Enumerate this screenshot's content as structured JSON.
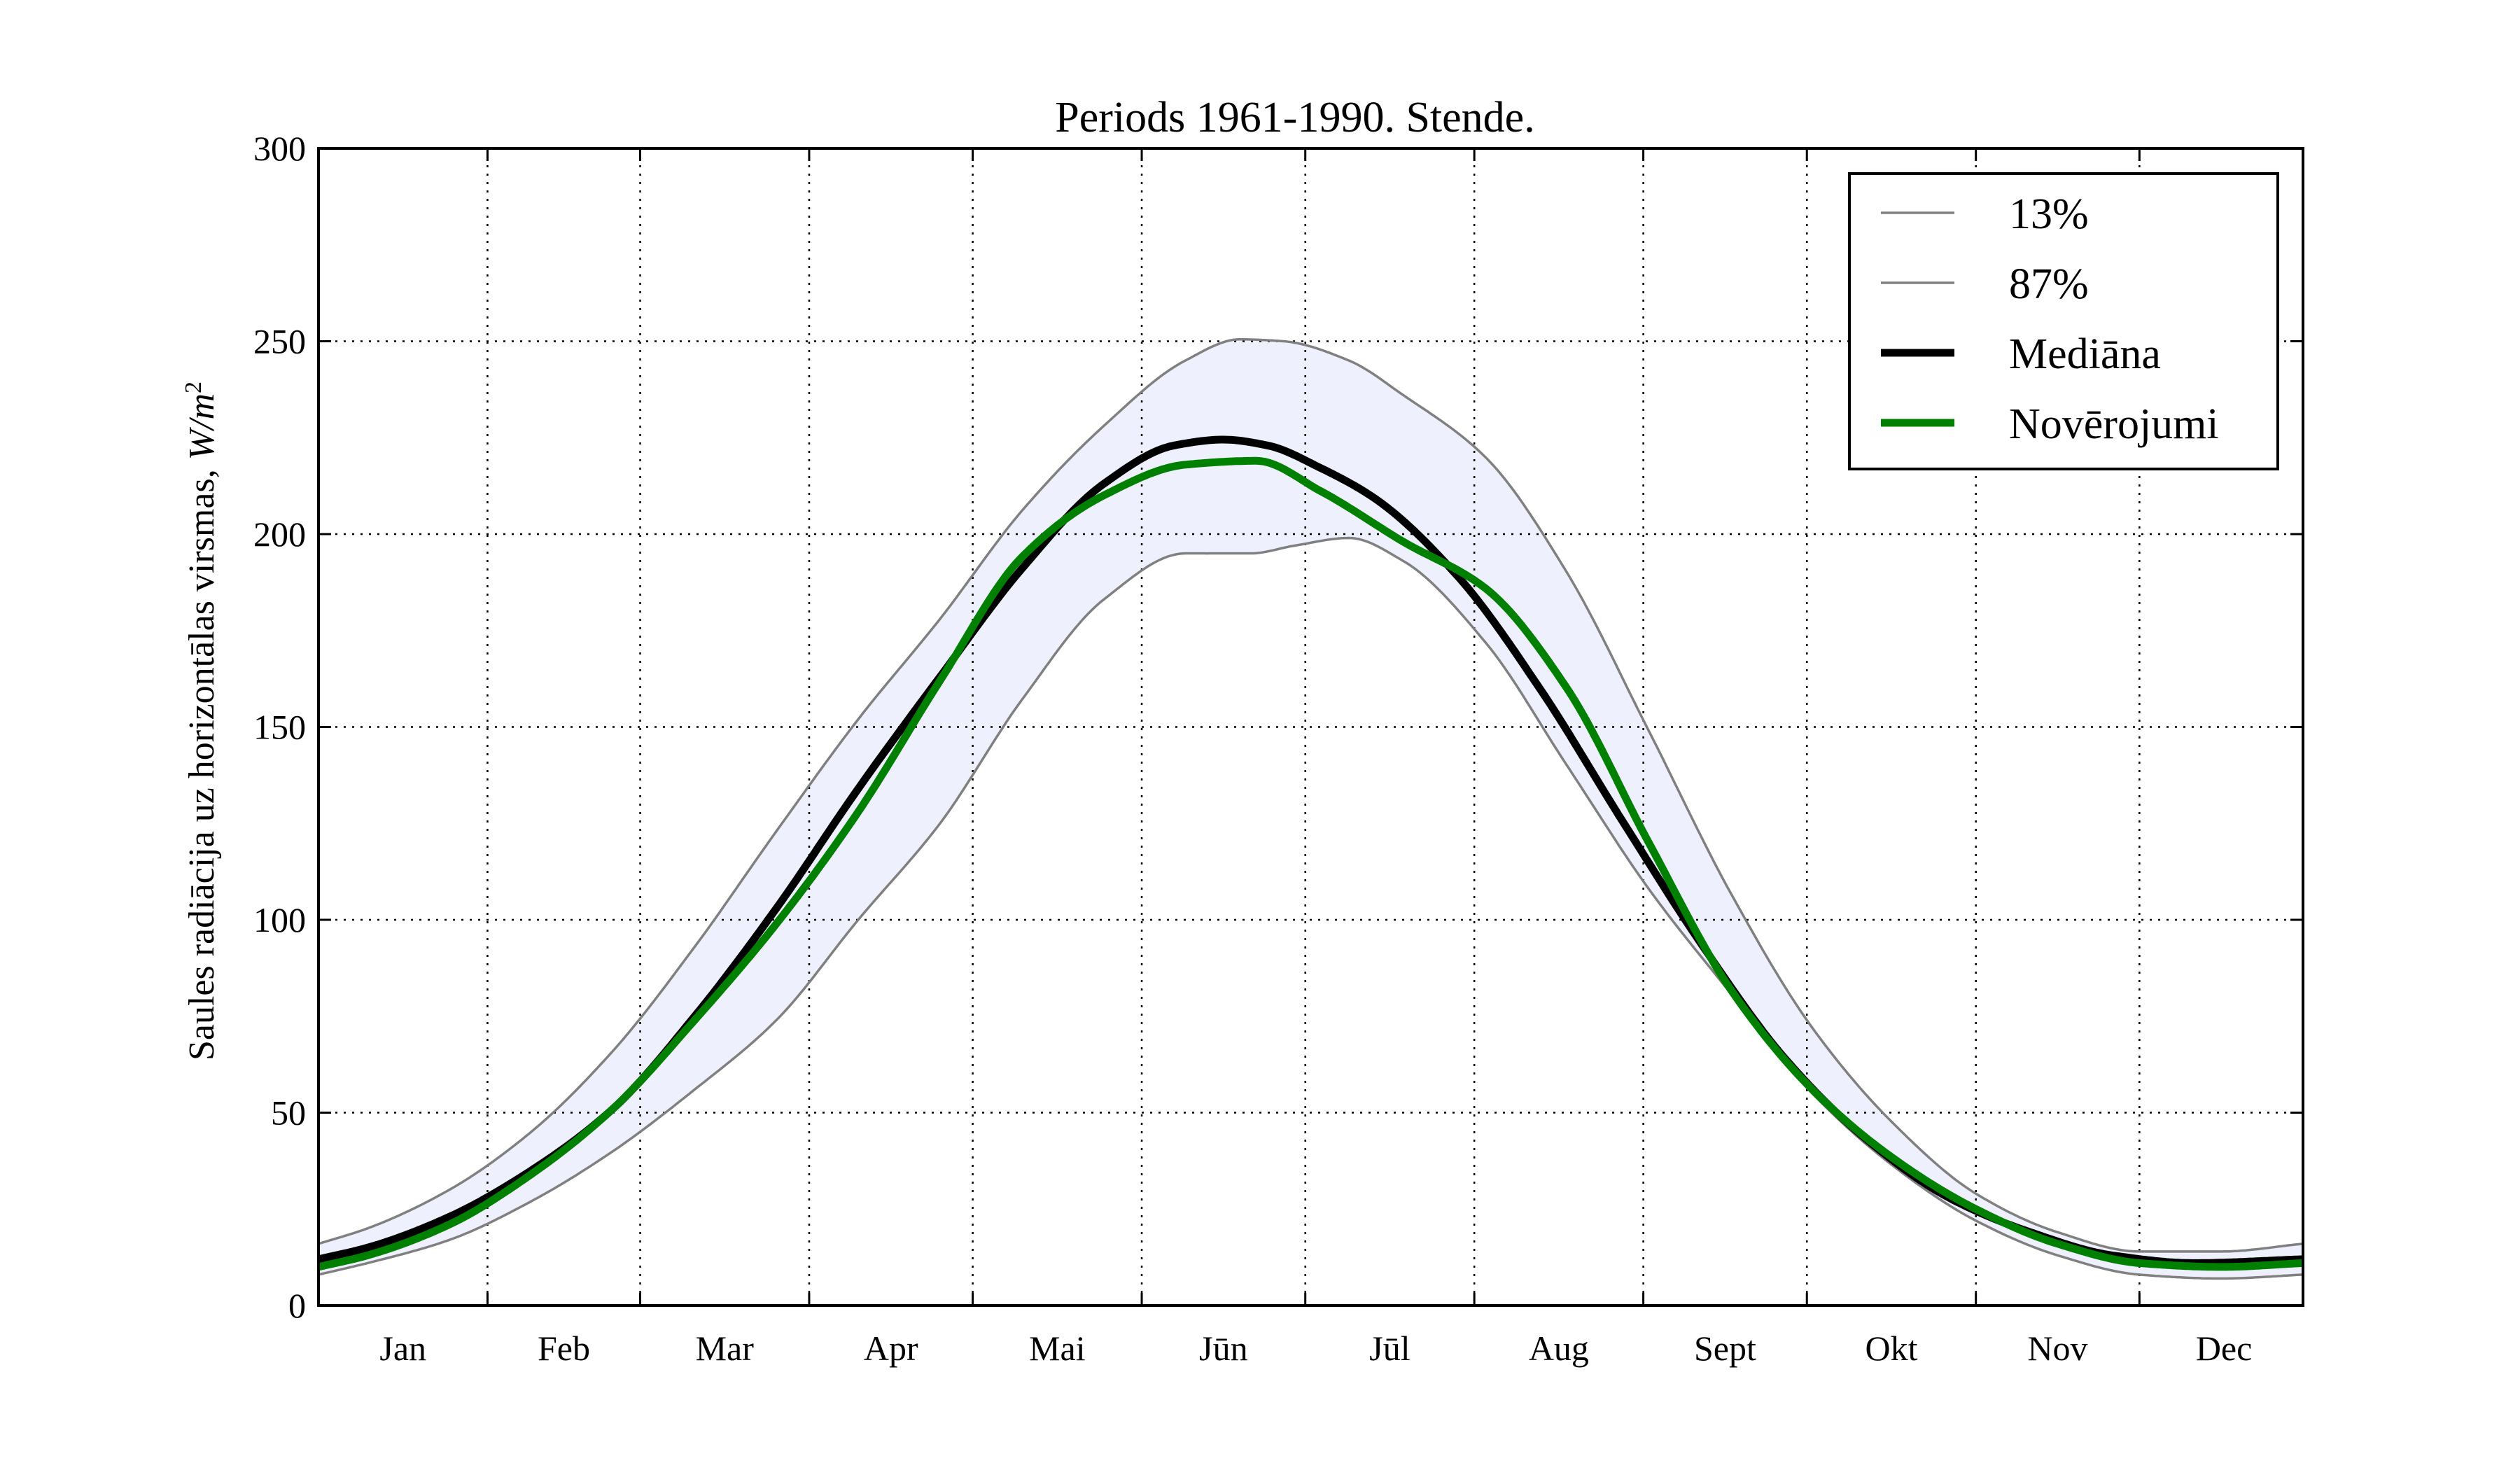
{
  "chart_data": {
    "type": "line",
    "title": "Periods 1961-1990. Stende.",
    "xlabel": "",
    "ylabel_text": "Saules radiācija uz horizontālas virsmas, ",
    "ylabel_unit": "W/m",
    "ylabel_unit_exp": "2",
    "ylim": [
      0,
      300
    ],
    "yticks": [
      0,
      50,
      100,
      150,
      200,
      250,
      300
    ],
    "month_labels": [
      "Jan",
      "Feb",
      "Mar",
      "Apr",
      "Mai",
      "Jūn",
      "Jūl",
      "Aug",
      "Sept",
      "Okt",
      "Nov",
      "Dec"
    ],
    "x_range_days": [
      1,
      365
    ],
    "grid": true,
    "legend_position": "upper-right",
    "band_color": "#eef0fd",
    "series": [
      {
        "name": "13%",
        "color": "#808080",
        "width": "thin",
        "x": [
          1,
          10,
          25,
          40,
          55,
          70,
          85,
          100,
          115,
          130,
          145,
          160,
          172,
          180,
          190,
          200,
          215,
          230,
          245,
          260,
          275,
          290,
          305,
          320,
          335,
          350,
          365
        ],
        "y": [
          8,
          11,
          17,
          27,
          40,
          56,
          74,
          100,
          125,
          157,
          183,
          195,
          195,
          197,
          199,
          193,
          172,
          140,
          108,
          81,
          55,
          36,
          22,
          13,
          8,
          7,
          8
        ]
      },
      {
        "name": "87%",
        "color": "#808080",
        "width": "thin",
        "x": [
          1,
          10,
          25,
          40,
          55,
          70,
          85,
          100,
          115,
          130,
          145,
          160,
          170,
          178,
          190,
          200,
          215,
          230,
          245,
          260,
          275,
          290,
          305,
          320,
          335,
          350,
          365
        ],
        "y": [
          16,
          20,
          30,
          45,
          66,
          93,
          123,
          152,
          178,
          206,
          228,
          245,
          250.5,
          250,
          245,
          236,
          220,
          190,
          149,
          107,
          72,
          47,
          29,
          19,
          14,
          14,
          16
        ]
      },
      {
        "name": "Mediāna",
        "color": "#000000",
        "width": "thick",
        "x": [
          1,
          10,
          25,
          40,
          55,
          70,
          85,
          100,
          115,
          130,
          145,
          158,
          167,
          175,
          185,
          195,
          210,
          225,
          240,
          255,
          270,
          285,
          300,
          315,
          330,
          345,
          365
        ],
        "y": [
          12,
          15,
          23,
          35,
          51,
          75,
          103,
          134,
          163,
          191,
          213,
          223,
          224.5,
          223,
          217,
          209,
          189,
          160,
          126,
          93,
          64,
          43,
          28,
          19,
          13,
          11,
          12
        ]
      },
      {
        "name": "Novērojumi",
        "color": "#008000",
        "width": "thick",
        "x": [
          1,
          10,
          25,
          40,
          55,
          70,
          85,
          100,
          115,
          130,
          145,
          160,
          173,
          185,
          200,
          215,
          230,
          245,
          260,
          275,
          290,
          305,
          320,
          335,
          350,
          365
        ],
        "y": [
          10,
          13,
          21,
          34,
          51,
          74,
          99,
          128,
          162,
          194,
          210,
          218,
          219,
          211,
          198,
          186,
          160,
          120,
          82,
          56,
          38,
          25,
          16,
          11,
          10,
          11
        ]
      }
    ]
  }
}
